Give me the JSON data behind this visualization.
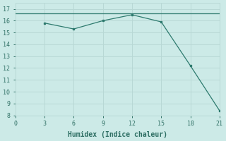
{
  "line1_x": [
    0,
    3,
    6,
    9,
    12,
    15,
    18,
    21
  ],
  "line1_y": [
    16.6,
    16.6,
    16.6,
    16.6,
    16.6,
    16.6,
    16.6,
    16.6
  ],
  "line2_x": [
    3,
    6,
    9,
    12,
    15,
    18,
    21
  ],
  "line2_y": [
    15.8,
    15.3,
    16.0,
    16.5,
    15.9,
    12.2,
    8.4
  ],
  "line_color": "#2d7a6e",
  "bg_color": "#cceae7",
  "grid_color": "#b8d8d5",
  "xlabel": "Humidex (Indice chaleur)",
  "ylim": [
    8,
    17.5
  ],
  "xlim": [
    0,
    21
  ],
  "xticks": [
    0,
    3,
    6,
    9,
    12,
    15,
    18,
    21
  ],
  "yticks": [
    8,
    9,
    10,
    11,
    12,
    13,
    14,
    15,
    16,
    17
  ],
  "font_color": "#2d6e63",
  "font_size": 7
}
